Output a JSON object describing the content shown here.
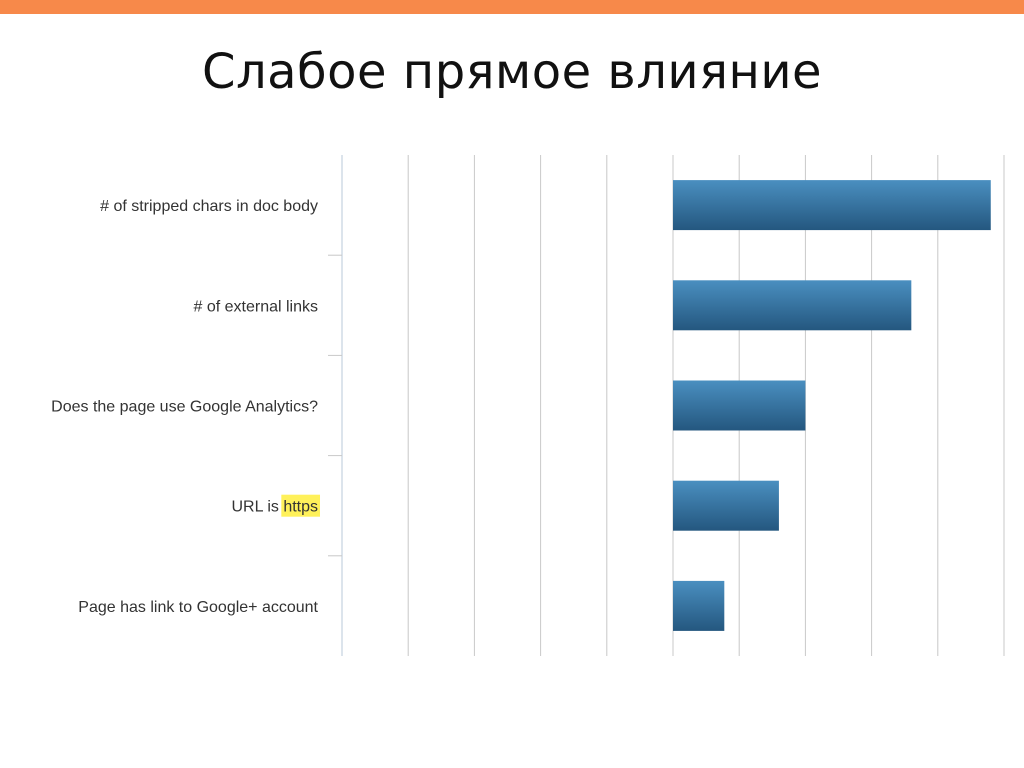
{
  "slide": {
    "title": "Слабое прямое влияние"
  },
  "colors": {
    "top_bar": "#f7894a",
    "bar_fill_top": "#4a8fc0",
    "bar_fill_bottom": "#24577f",
    "gridline": "#c8c8c8",
    "highlight": "#fff15a"
  },
  "chart_data": {
    "type": "bar",
    "orientation": "horizontal",
    "title": "",
    "xlabel": "",
    "ylabel": "",
    "categories": [
      "# of stripped chars in doc body",
      "# of external links",
      "Does the page use Google Analytics?",
      "URL is https",
      "Page has link to Google+ account"
    ],
    "highlighted_word": "https",
    "values": [
      0.96,
      0.72,
      0.4,
      0.32,
      0.155
    ],
    "xlim": [
      -1,
      1
    ],
    "grid": true,
    "grid_divisions": 10,
    "tick_labels_shown": false
  }
}
